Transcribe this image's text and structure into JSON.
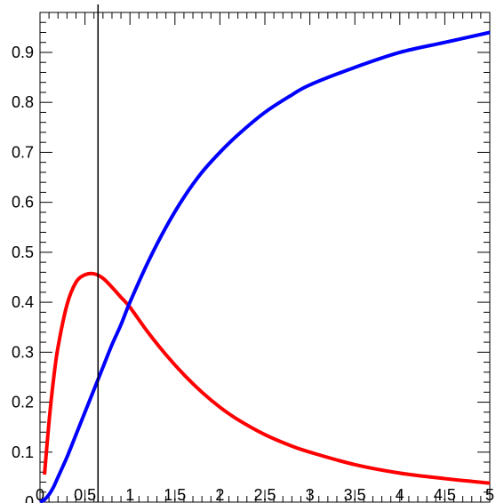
{
  "chart_data": {
    "type": "line",
    "title": "",
    "xlabel": "",
    "ylabel": "",
    "xlim": [
      0,
      5
    ],
    "ylim": [
      0,
      0.98
    ],
    "xticks": [
      0,
      0.5,
      1,
      1.5,
      2,
      2.5,
      3,
      3.5,
      4,
      4.5,
      5
    ],
    "xtick_labels": [
      "0",
      "0.5",
      "1",
      "1.5",
      "2",
      "2.5",
      "3",
      "3.5",
      "4",
      "4.5",
      "5"
    ],
    "yticks": [
      0,
      0.1,
      0.2,
      0.3,
      0.4,
      0.5,
      0.6,
      0.7,
      0.8,
      0.9
    ],
    "ytick_labels": [
      "0",
      "0.1",
      "0.2",
      "0.3",
      "0.4",
      "0.5",
      "0.6",
      "0.7",
      "0.8",
      "0.9"
    ],
    "grid": false,
    "legend": "none",
    "vertical_line_x": 0.645,
    "series": [
      {
        "color": "#ff0000",
        "x": [
          0.05,
          0.1,
          0.15,
          0.2,
          0.3,
          0.4,
          0.5,
          0.6,
          0.7,
          0.8,
          0.9,
          1.0,
          1.2,
          1.4,
          1.6,
          1.8,
          2.0,
          2.2,
          2.5,
          2.8,
          3.0,
          3.5,
          4.0,
          4.5,
          5.0
        ],
        "values": [
          0.055,
          0.16,
          0.245,
          0.31,
          0.395,
          0.44,
          0.455,
          0.457,
          0.448,
          0.43,
          0.41,
          0.39,
          0.34,
          0.295,
          0.255,
          0.22,
          0.19,
          0.165,
          0.135,
          0.112,
          0.1,
          0.075,
          0.058,
          0.047,
          0.038
        ]
      },
      {
        "color": "#0000ff",
        "x": [
          0.0,
          0.05,
          0.1,
          0.15,
          0.2,
          0.3,
          0.4,
          0.5,
          0.6,
          0.7,
          0.8,
          0.9,
          1.0,
          1.2,
          1.4,
          1.6,
          1.8,
          2.0,
          2.2,
          2.5,
          2.8,
          3.0,
          3.5,
          4.0,
          4.5,
          5.0
        ],
        "values": [
          0.0,
          0.005,
          0.015,
          0.03,
          0.05,
          0.09,
          0.135,
          0.18,
          0.225,
          0.27,
          0.315,
          0.355,
          0.4,
          0.48,
          0.55,
          0.61,
          0.66,
          0.7,
          0.735,
          0.78,
          0.815,
          0.835,
          0.87,
          0.9,
          0.92,
          0.94
        ]
      }
    ]
  }
}
